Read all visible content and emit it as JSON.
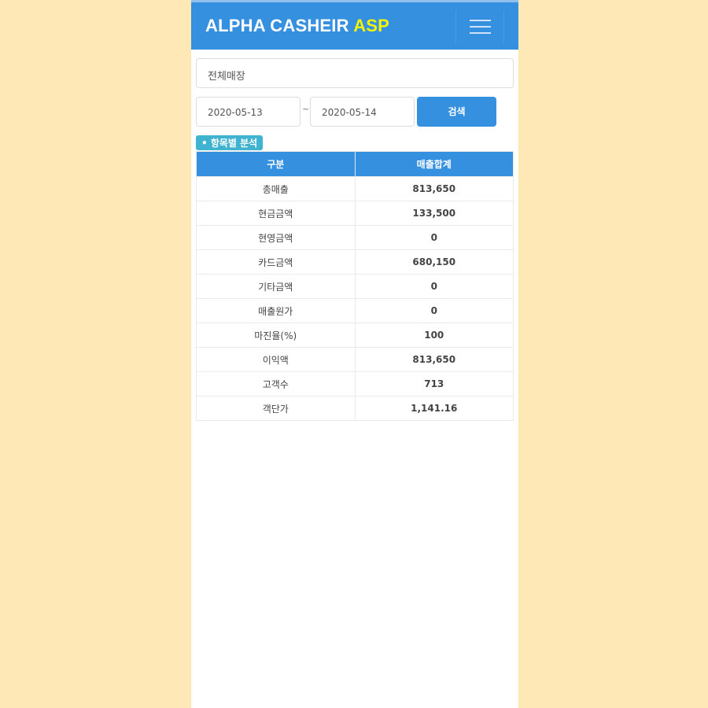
{
  "header": {
    "title_main": "ALPHA CASHEIR",
    "title_accent": "ASP"
  },
  "filter": {
    "store": "전체매장",
    "start_date": "2020-05-13",
    "separator": "~",
    "end_date": "2020-05-14",
    "search_label": "검색"
  },
  "section": {
    "badge": "• 항목별 분석"
  },
  "table": {
    "headers": [
      "구분",
      "매출합계"
    ],
    "rows": [
      [
        "총매출",
        "813,650"
      ],
      [
        "현금금액",
        "133,500"
      ],
      [
        "현영금액",
        "0"
      ],
      [
        "카드금액",
        "680,150"
      ],
      [
        "기타금액",
        "0"
      ],
      [
        "매출원가",
        "0"
      ],
      [
        "마진율(%)",
        "100"
      ],
      [
        "이익액",
        "813,650"
      ],
      [
        "고객수",
        "713"
      ],
      [
        "객단가",
        "1,141.16"
      ]
    ]
  },
  "colors": {
    "primary": "#3690e0",
    "accent": "#f4f400",
    "badge": "#3fb3cf",
    "background": "#fee9b6"
  }
}
